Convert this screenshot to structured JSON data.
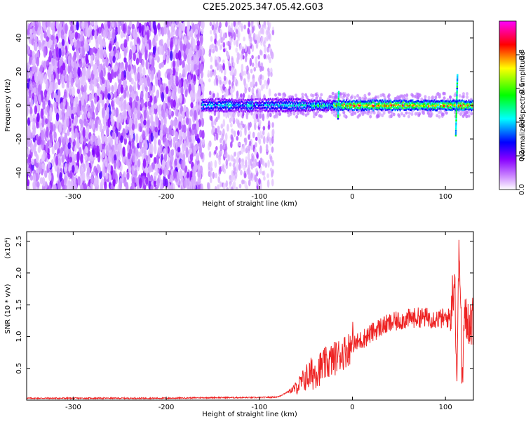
{
  "title": "C2E5.2025.347.05.42.G03",
  "chart_data": [
    {
      "type": "heatmap",
      "xlabel": "Height of straight line (km)",
      "ylabel": "Frequency (Hz)",
      "xlim": [
        -350,
        130
      ],
      "ylim": [
        -50,
        50
      ],
      "x_ticks": [
        -300,
        -200,
        -100,
        0,
        100
      ],
      "y_ticks": [
        -40,
        -20,
        0,
        20,
        40
      ],
      "colorbar": {
        "label": "Normalized spectral amplitude",
        "range": [
          0,
          1
        ],
        "ticks": [
          "0.0",
          "0.2",
          "0.4",
          "0.6",
          "0.8"
        ],
        "colors": [
          "#ffffff",
          "#8800ff",
          "#0000ff",
          "#00ffff",
          "#00ff00",
          "#ffff00",
          "#ff0000",
          "#ff00ff"
        ]
      },
      "regions": [
        {
          "x": [
            -350,
            -160
          ],
          "freq": [
            -50,
            50
          ],
          "amplitude": 0.15,
          "description_key": "broadband noise"
        },
        {
          "x": [
            -160,
            -85
          ],
          "freq": [
            -50,
            50
          ],
          "amplitude": 0.08
        },
        {
          "x": [
            -160,
            -45
          ],
          "freq": [
            -4,
            4
          ],
          "amplitude": 0.4
        },
        {
          "x": [
            -45,
            130
          ],
          "freq": [
            -3,
            3
          ],
          "amplitude": 0.85
        }
      ]
    },
    {
      "type": "line",
      "xlabel": "Height of straight line (km)",
      "ylabel": "SNR (10 * v/v)",
      "y_multiplier": "(x10⁴)",
      "xlim": [
        -350,
        130
      ],
      "ylim": [
        0,
        2.65
      ],
      "x_ticks": [
        -300,
        -200,
        -100,
        0,
        100
      ],
      "y_ticks": [
        "0.5",
        "1.0",
        "1.5",
        "2.0",
        "2.5"
      ],
      "line_color": "#ee2222",
      "series": [
        {
          "x": [
            -350,
            -300,
            -250,
            -200,
            -150,
            -100,
            -80,
            -60,
            -50,
            -40,
            -30,
            -20,
            -10,
            0,
            10,
            20,
            30,
            40,
            50,
            60,
            70,
            80,
            90,
            100,
            105,
            110,
            112,
            115,
            118,
            120,
            130
          ],
          "values": [
            0.03,
            0.03,
            0.03,
            0.03,
            0.04,
            0.04,
            0.05,
            0.2,
            0.35,
            0.45,
            0.55,
            0.65,
            0.75,
            0.85,
            0.95,
            1.05,
            1.15,
            1.2,
            1.25,
            1.28,
            1.3,
            1.3,
            1.28,
            1.28,
            1.3,
            2.0,
            0.3,
            2.6,
            0.2,
            1.25,
            1.24
          ]
        }
      ]
    }
  ]
}
